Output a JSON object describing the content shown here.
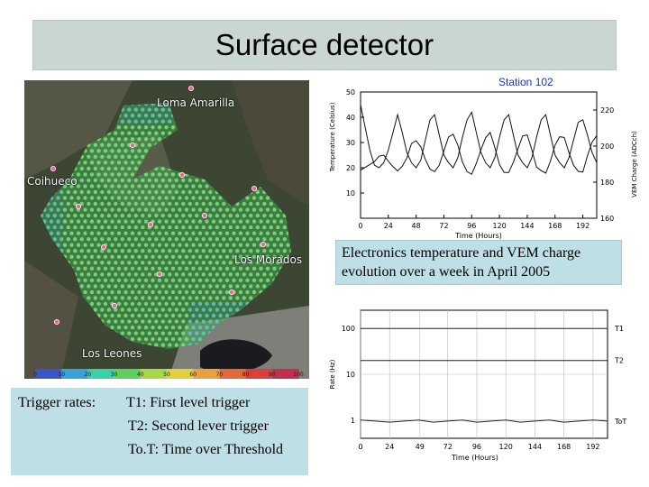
{
  "title": "Surface detector",
  "map": {
    "labels": {
      "loma_amarilla": "Loma Amarilla",
      "coihueco": "Coihueco",
      "los_morados": "Los Morados",
      "los_leones": "Los Leones"
    },
    "colorbar_ticks": [
      "0",
      "10",
      "20",
      "30",
      "40",
      "50",
      "60",
      "70",
      "80",
      "90",
      "100"
    ]
  },
  "trigger_rates": {
    "label": "Trigger rates:",
    "lines": [
      "T1: First level trigger",
      "T2: Second lever trigger",
      "To.T: Time over Threshold"
    ]
  },
  "station_label": "Station 102",
  "electronics_caption": "Electronics temperature and VEM charge evolution over a week in April 2005",
  "chart_data": [
    {
      "type": "line",
      "title": "",
      "xlabel": "Time (Hours)",
      "ylabel": "Temperature (Celsius)",
      "y2label": "VEM Charge (ADCch)",
      "xlim": [
        0,
        204
      ],
      "x_ticks": [
        0,
        24,
        48,
        72,
        96,
        120,
        144,
        168,
        192
      ],
      "ylim": [
        0,
        50
      ],
      "y_ticks": [
        10,
        20,
        30,
        40,
        50
      ],
      "y2lim": [
        160,
        230
      ],
      "y2_ticks": [
        160,
        180,
        200,
        220
      ],
      "grid": false,
      "series": [
        {
          "axis": "left",
          "x": [
            0,
            4,
            8,
            12,
            16,
            20,
            24,
            28,
            32,
            36,
            40,
            44,
            48,
            52,
            56,
            60,
            64,
            68,
            72,
            76,
            80,
            84,
            88,
            92,
            96,
            100,
            104,
            108,
            112,
            116,
            120,
            124,
            128,
            132,
            136,
            140,
            144,
            148,
            152,
            156,
            160,
            164,
            168,
            172,
            176,
            180,
            184,
            188,
            192,
            196,
            200,
            204
          ],
          "values": [
            45,
            36,
            27,
            21,
            20,
            22,
            27,
            34,
            41,
            34,
            26,
            22,
            20,
            23,
            31,
            39,
            41,
            33,
            25,
            22,
            20,
            24,
            32,
            39,
            42,
            34,
            26,
            22,
            20,
            24,
            32,
            39,
            41,
            33,
            25,
            22,
            20,
            24,
            32,
            39,
            41,
            33,
            25,
            22,
            20,
            24,
            31,
            38,
            39,
            33,
            26,
            22
          ]
        },
        {
          "axis": "right",
          "x": [
            0,
            4,
            8,
            12,
            16,
            20,
            24,
            28,
            32,
            36,
            40,
            44,
            48,
            52,
            56,
            60,
            64,
            68,
            72,
            76,
            80,
            84,
            88,
            92,
            96,
            100,
            104,
            108,
            112,
            116,
            120,
            124,
            128,
            132,
            136,
            140,
            144,
            148,
            152,
            156,
            160,
            164,
            168,
            172,
            176,
            180,
            184,
            188,
            192,
            196,
            200,
            204
          ],
          "values": [
            186,
            188,
            190,
            192,
            194,
            195,
            192,
            188,
            186,
            189,
            194,
            201,
            203,
            200,
            192,
            187,
            186,
            190,
            197,
            205,
            207,
            200,
            191,
            186,
            185,
            190,
            198,
            205,
            207,
            199,
            190,
            186,
            185,
            191,
            199,
            205,
            206,
            198,
            189,
            186,
            185,
            192,
            200,
            205,
            205,
            197,
            189,
            186,
            186,
            194,
            202,
            206
          ]
        }
      ]
    },
    {
      "type": "line",
      "title": "",
      "xlabel": "Time (Hours)",
      "ylabel": "Rate (Hz)",
      "y_scale": "log",
      "ylim": [
        0.4,
        250
      ],
      "y_ticks": [
        1,
        10,
        100
      ],
      "xlim": [
        0,
        204
      ],
      "x_ticks": [
        0,
        24,
        49,
        72,
        96,
        120,
        144,
        168,
        192
      ],
      "grid": true,
      "series": [
        {
          "name": "T1",
          "x": [
            0,
            24,
            48,
            72,
            96,
            120,
            144,
            168,
            192,
            204
          ],
          "values": [
            100,
            100,
            100,
            100,
            100,
            100,
            100,
            100,
            100,
            100
          ]
        },
        {
          "name": "T2",
          "x": [
            0,
            24,
            48,
            72,
            96,
            120,
            144,
            168,
            192,
            204
          ],
          "values": [
            20,
            20,
            20,
            20,
            20,
            20,
            20,
            20,
            20,
            20
          ]
        },
        {
          "name": "ToT",
          "x": [
            0,
            12,
            24,
            36,
            48,
            60,
            72,
            84,
            96,
            108,
            120,
            132,
            144,
            156,
            168,
            180,
            192,
            204
          ],
          "values": [
            1.0,
            0.95,
            0.9,
            0.95,
            1.0,
            0.9,
            0.95,
            1.0,
            0.9,
            0.95,
            1.0,
            0.9,
            0.95,
            1.0,
            0.9,
            0.95,
            1.0,
            0.95
          ]
        }
      ]
    }
  ]
}
